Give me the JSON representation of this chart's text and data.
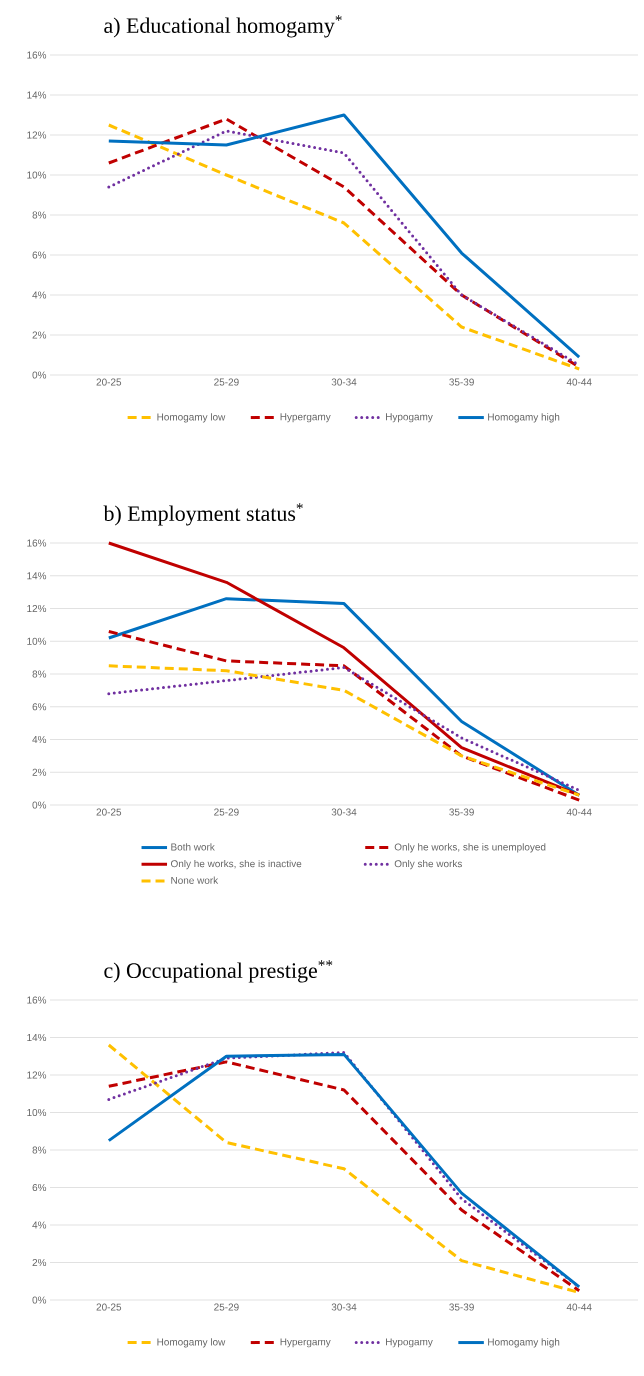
{
  "chart_data": [
    {
      "type": "line",
      "title": "a) Educational homogamy$^{*}$",
      "categories": [
        "20-25",
        "25-29",
        "30-34",
        "35-39",
        "40-44"
      ],
      "ylim": [
        0,
        16
      ],
      "yticks": [
        {
          "value": 0,
          "label": "0%"
        },
        {
          "value": 2,
          "label": "2%"
        },
        {
          "value": 4,
          "label": "4%"
        },
        {
          "value": 6,
          "label": "6%"
        },
        {
          "value": 8,
          "label": "8%"
        },
        {
          "value": 10,
          "label": "10%"
        },
        {
          "value": 12,
          "label": "12%"
        },
        {
          "value": 14,
          "label": "14%"
        },
        {
          "value": 16,
          "label": "16%"
        }
      ],
      "grid": "y",
      "legend": "bottom",
      "series": [
        {
          "name": "Homogamy low",
          "color": "#ffc000",
          "line_style": "dashed",
          "values": [
            12.5,
            10.0,
            7.6,
            2.4,
            0.3
          ]
        },
        {
          "name": "Hypergamy",
          "color": "#c00000",
          "line_style": "dashed",
          "values": [
            10.6,
            12.8,
            9.4,
            4.0,
            0.4
          ]
        },
        {
          "name": "Hypogamy",
          "color": "#7030a0",
          "line_style": "dotted",
          "values": [
            9.4,
            12.2,
            11.1,
            4.0,
            0.5
          ]
        },
        {
          "name": "Homogamy high",
          "color": "#0070c0",
          "line_style": "solid",
          "values": [
            11.7,
            11.5,
            13.0,
            6.1,
            0.9
          ]
        }
      ]
    },
    {
      "type": "line",
      "title": "b) Employment status$^{*}$",
      "categories": [
        "20-25",
        "25-29",
        "30-34",
        "35-39",
        "40-44"
      ],
      "ylim": [
        0,
        16
      ],
      "yticks": [
        {
          "value": 0,
          "label": "0%"
        },
        {
          "value": 2,
          "label": "2%"
        },
        {
          "value": 4,
          "label": "4%"
        },
        {
          "value": 6,
          "label": "6%"
        },
        {
          "value": 8,
          "label": "8%"
        },
        {
          "value": 10,
          "label": "10%"
        },
        {
          "value": 12,
          "label": "12%"
        },
        {
          "value": 14,
          "label": "14%"
        },
        {
          "value": 16,
          "label": "16%"
        }
      ],
      "grid": "y",
      "legend": "bottom",
      "series": [
        {
          "name": "Both work",
          "color": "#0070c0",
          "line_style": "solid",
          "values": [
            10.2,
            12.6,
            12.3,
            5.1,
            0.6
          ]
        },
        {
          "name": "Only he works, she is unemployed",
          "color": "#c00000",
          "line_style": "dashed",
          "values": [
            10.6,
            8.8,
            8.5,
            3.0,
            0.3
          ]
        },
        {
          "name": "Only he works, she is inactive",
          "color": "#c00000",
          "line_style": "solid",
          "values": [
            16.0,
            13.6,
            9.6,
            3.5,
            0.6
          ]
        },
        {
          "name": "Only she works",
          "color": "#7030a0",
          "line_style": "dotted",
          "values": [
            6.8,
            7.6,
            8.4,
            4.1,
            0.9
          ]
        },
        {
          "name": "None work",
          "color": "#ffc000",
          "line_style": "dashed",
          "values": [
            8.5,
            8.2,
            7.0,
            3.0,
            0.6
          ]
        }
      ]
    },
    {
      "type": "line",
      "title": "c) Occupational prestige$^{**}$",
      "categories": [
        "20-25",
        "25-29",
        "30-34",
        "35-39",
        "40-44"
      ],
      "ylim": [
        0,
        16
      ],
      "yticks": [
        {
          "value": 0,
          "label": "0%"
        },
        {
          "value": 2,
          "label": "2%"
        },
        {
          "value": 4,
          "label": "4%"
        },
        {
          "value": 6,
          "label": "6%"
        },
        {
          "value": 8,
          "label": "8%"
        },
        {
          "value": 10,
          "label": "10%"
        },
        {
          "value": 12,
          "label": "12%"
        },
        {
          "value": 14,
          "label": "14%"
        },
        {
          "value": 16,
          "label": "16%"
        }
      ],
      "grid": "y",
      "legend": "bottom",
      "series": [
        {
          "name": "Homogamy low",
          "color": "#ffc000",
          "line_style": "dashed",
          "values": [
            13.6,
            8.4,
            7.0,
            2.1,
            0.4
          ]
        },
        {
          "name": "Hypergamy",
          "color": "#c00000",
          "line_style": "dashed",
          "values": [
            11.4,
            12.7,
            11.2,
            4.8,
            0.5
          ]
        },
        {
          "name": "Hypogamy",
          "color": "#7030a0",
          "line_style": "dotted",
          "values": [
            10.7,
            12.9,
            13.2,
            5.4,
            0.7
          ]
        },
        {
          "name": "Homogamy high",
          "color": "#0070c0",
          "line_style": "solid",
          "values": [
            8.5,
            13.0,
            13.1,
            5.7,
            0.7
          ]
        }
      ]
    }
  ]
}
